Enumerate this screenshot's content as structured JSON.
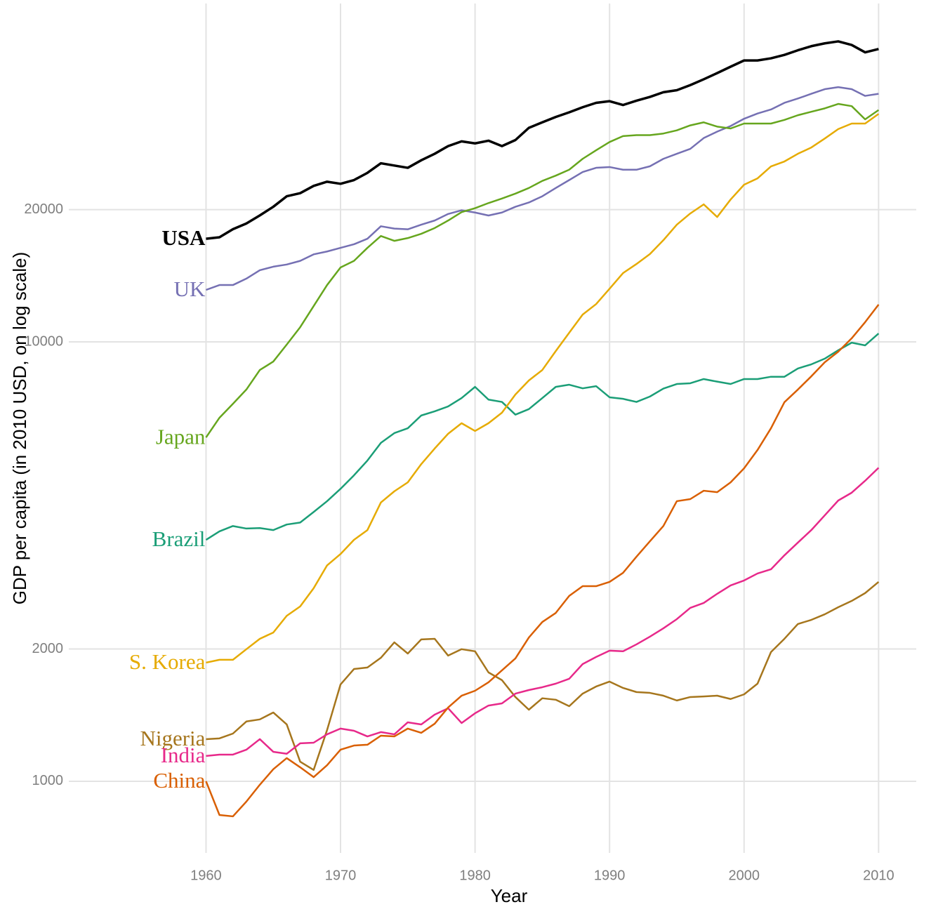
{
  "chart_data": {
    "type": "line",
    "x_label": "Year",
    "y_label": "GDP per capita (in 2010 USD, on log scale)",
    "log_y": true,
    "grid": true,
    "x": [
      1960,
      1961,
      1962,
      1963,
      1964,
      1965,
      1966,
      1967,
      1968,
      1969,
      1970,
      1971,
      1972,
      1973,
      1974,
      1975,
      1976,
      1977,
      1978,
      1979,
      1980,
      1981,
      1982,
      1983,
      1984,
      1985,
      1986,
      1987,
      1988,
      1989,
      1990,
      1991,
      1992,
      1993,
      1994,
      1995,
      1996,
      1997,
      1998,
      1999,
      2000,
      2001,
      2002,
      2003,
      2004,
      2005,
      2006,
      2007,
      2008,
      2009,
      2010
    ],
    "xlim": [
      1949.8,
      2012.8
    ],
    "xticks": [
      1960,
      1970,
      1980,
      1990,
      2000,
      2010
    ],
    "ylim": [
      687,
      58900
    ],
    "yticks": [
      1000,
      2000,
      10000,
      20000
    ],
    "series": [
      {
        "name": "USA",
        "color": "#000000",
        "values": [
          17170,
          17300,
          18050,
          18600,
          19400,
          20300,
          21450,
          21800,
          22650,
          23150,
          22900,
          23350,
          24250,
          25500,
          25200,
          24900,
          25900,
          26800,
          27900,
          28600,
          28300,
          28700,
          27900,
          28800,
          30700,
          31600,
          32500,
          33300,
          34200,
          35000,
          35300,
          34600,
          35400,
          36100,
          37000,
          37400,
          38400,
          39600,
          40900,
          42300,
          43700,
          43700,
          44200,
          45000,
          46100,
          47100,
          47800,
          48300,
          47400,
          45600,
          46400
        ]
      },
      {
        "name": "UK",
        "color": "#7570b3",
        "values": [
          13130,
          13470,
          13470,
          13930,
          14560,
          14830,
          15000,
          15290,
          15820,
          16060,
          16370,
          16680,
          17170,
          18330,
          18110,
          18040,
          18480,
          18890,
          19550,
          19930,
          19700,
          19390,
          19700,
          20300,
          20760,
          21450,
          22400,
          23350,
          24350,
          24900,
          25000,
          24650,
          24650,
          25100,
          26100,
          26800,
          27500,
          29100,
          30100,
          31000,
          32200,
          33100,
          33800,
          35000,
          35800,
          36700,
          37600,
          38000,
          37600,
          36300,
          36700
        ]
      },
      {
        "name": "Japan",
        "color": "#66a61e",
        "values": [
          6060,
          6720,
          7230,
          7790,
          8630,
          9020,
          9860,
          10800,
          12060,
          13470,
          14770,
          15290,
          16370,
          17420,
          16980,
          17230,
          17620,
          18160,
          18890,
          19740,
          20150,
          20700,
          21200,
          21750,
          22400,
          23250,
          23900,
          24650,
          26100,
          27300,
          28500,
          29400,
          29550,
          29550,
          29800,
          30300,
          31100,
          31600,
          30900,
          30600,
          31400,
          31400,
          31400,
          32000,
          32800,
          33400,
          34000,
          34800,
          34400,
          32100,
          33700
        ]
      },
      {
        "name": "Brazil",
        "color": "#1b9e77",
        "values": [
          3544,
          3705,
          3810,
          3760,
          3770,
          3730,
          3840,
          3880,
          4100,
          4340,
          4630,
          4970,
          5370,
          5890,
          6200,
          6360,
          6800,
          6950,
          7130,
          7450,
          7900,
          7390,
          7300,
          6830,
          7030,
          7450,
          7900,
          7990,
          7840,
          7930,
          7480,
          7420,
          7300,
          7510,
          7830,
          8020,
          8050,
          8230,
          8120,
          8020,
          8230,
          8230,
          8330,
          8330,
          8700,
          8890,
          9160,
          9570,
          9960,
          9820,
          10450
        ]
      },
      {
        "name": "S. Korea",
        "color": "#e6ab02",
        "values": [
          1862,
          1890,
          1890,
          1998,
          2110,
          2180,
          2380,
          2500,
          2750,
          3100,
          3290,
          3544,
          3730,
          4310,
          4570,
          4790,
          5270,
          5720,
          6180,
          6530,
          6270,
          6530,
          6900,
          7590,
          8170,
          8630,
          9530,
          10490,
          11540,
          12190,
          13210,
          14340,
          15040,
          15850,
          17040,
          18480,
          19600,
          20560,
          19240,
          21090,
          22790,
          23560,
          25080,
          25740,
          26800,
          27700,
          29030,
          30500,
          31400,
          31400,
          33030
        ]
      },
      {
        "name": "Nigeria",
        "color": "#a6761d",
        "values": [
          1247,
          1252,
          1284,
          1368,
          1383,
          1434,
          1347,
          1108,
          1061,
          1308,
          1661,
          1801,
          1815,
          1910,
          2071,
          1953,
          2103,
          2110,
          1932,
          1998,
          1976,
          1769,
          1699,
          1555,
          1455,
          1545,
          1533,
          1482,
          1583,
          1643,
          1686,
          1631,
          1596,
          1589,
          1566,
          1527,
          1555,
          1560,
          1566,
          1539,
          1577,
          1668,
          1968,
          2110,
          2280,
          2330,
          2399,
          2490,
          2573,
          2681,
          2843
        ]
      },
      {
        "name": "India",
        "color": "#e7298a",
        "values": [
          1142,
          1150,
          1150,
          1180,
          1247,
          1167,
          1155,
          1220,
          1224,
          1279,
          1318,
          1303,
          1265,
          1294,
          1279,
          1362,
          1347,
          1418,
          1466,
          1357,
          1428,
          1487,
          1504,
          1583,
          1613,
          1637,
          1668,
          1711,
          1848,
          1918,
          1983,
          1976,
          2049,
          2134,
          2229,
          2339,
          2481,
          2546,
          2671,
          2791,
          2864,
          2971,
          3037,
          3268,
          3493,
          3730,
          4030,
          4355,
          4537,
          4830,
          5170
        ]
      },
      {
        "name": "China",
        "color": "#d95f02",
        "values": [
          1000,
          838,
          832,
          899,
          982,
          1065,
          1129,
          1076,
          1022,
          1088,
          1180,
          1206,
          1211,
          1270,
          1265,
          1318,
          1289,
          1352,
          1472,
          1566,
          1607,
          1680,
          1788,
          1904,
          2124,
          2304,
          2416,
          2642,
          2780,
          2780,
          2843,
          2981,
          3244,
          3517,
          3810,
          4340,
          4387,
          4584,
          4550,
          4790,
          5155,
          5675,
          6360,
          7290,
          7790,
          8350,
          8990,
          9500,
          10190,
          11090,
          12160
        ]
      }
    ]
  }
}
